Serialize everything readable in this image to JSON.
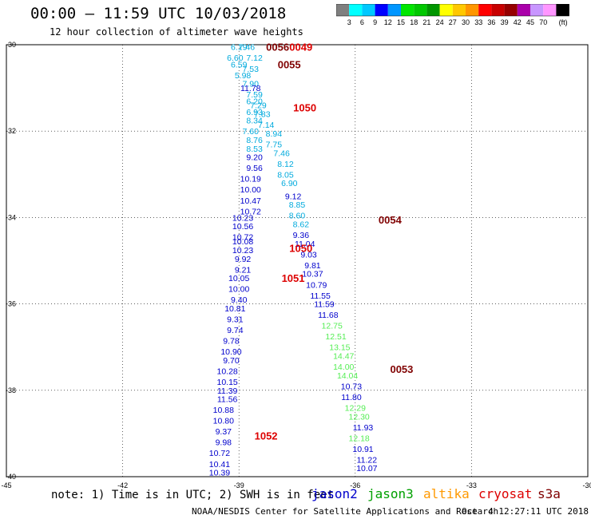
{
  "header": {
    "title": "00:00 – 11:59 UTC 10/03/2018",
    "subtitle": "12 hour collection of altimeter wave heights"
  },
  "legend": {
    "unit": "(ft)",
    "colors": [
      "#7f7f7f",
      "#00ffff",
      "#00c8ff",
      "#0000ff",
      "#0096ff",
      "#00e600",
      "#00c800",
      "#009600",
      "#ffff00",
      "#ffc800",
      "#ff9600",
      "#ff0000",
      "#c80000",
      "#960000",
      "#aa00aa",
      "#c896ff",
      "#ff96ff",
      "#000000"
    ],
    "labels": [
      "3",
      "6",
      "9",
      "12",
      "15",
      "18",
      "21",
      "24",
      "27",
      "30",
      "33",
      "36",
      "39",
      "42",
      "45",
      "70"
    ]
  },
  "axes": {
    "x_ticks": [
      "-45",
      "-42",
      "-39",
      "-36",
      "-33",
      "-30"
    ],
    "y_ticks": [
      "-30",
      "-32",
      "-34",
      "-36",
      "-38",
      "-40"
    ]
  },
  "footer": {
    "note": "note: 1) Time is in UTC; 2) SWH is in feet",
    "satellites": [
      {
        "name": "jason2",
        "color": "#0000cc"
      },
      {
        "name": "jason3",
        "color": "#00a000"
      },
      {
        "name": "altika",
        "color": "#ff9900"
      },
      {
        "name": "cryosat",
        "color": "#dd0000"
      },
      {
        "name": "s3a",
        "color": "#800000"
      }
    ],
    "credit": "NOAA/NESDIS Center for Satellite Applications and Research",
    "timestamp": "Oct  4 12:27:11 UTC 2018"
  },
  "chart_data": {
    "type": "scatter",
    "xlim": [
      -45,
      -30
    ],
    "ylim": [
      -40,
      -30
    ],
    "grid": true,
    "points": [
      {
        "lon": -39.0,
        "lat": -30.05,
        "v": "6.19",
        "c": "#00aadd"
      },
      {
        "lon": -39.1,
        "lat": -30.3,
        "v": "6.60",
        "c": "#00aadd"
      },
      {
        "lon": -39.0,
        "lat": -30.45,
        "v": "6.59",
        "c": "#00aadd"
      },
      {
        "lon": -38.9,
        "lat": -30.7,
        "v": "5.98",
        "c": "#00aadd"
      },
      {
        "lon": -38.7,
        "lat": -30.9,
        "v": "7.90",
        "c": "#00aadd"
      },
      {
        "lon": -38.7,
        "lat": -31.0,
        "v": "11.78",
        "c": "#0000cc"
      },
      {
        "lon": -38.6,
        "lat": -31.15,
        "v": "7.59",
        "c": "#00aadd"
      },
      {
        "lon": -38.6,
        "lat": -31.3,
        "v": "6.20",
        "c": "#00aadd"
      },
      {
        "lon": -38.5,
        "lat": -31.4,
        "v": "7.29",
        "c": "#00aadd"
      },
      {
        "lon": -38.6,
        "lat": -31.55,
        "v": "6.93",
        "c": "#00aadd"
      },
      {
        "lon": -38.4,
        "lat": -31.6,
        "v": "7.83",
        "c": "#00aadd"
      },
      {
        "lon": -38.6,
        "lat": -31.75,
        "v": "8.34",
        "c": "#00aadd"
      },
      {
        "lon": -38.3,
        "lat": -31.85,
        "v": "7.14",
        "c": "#00aadd"
      },
      {
        "lon": -38.7,
        "lat": -32.0,
        "v": "7.60",
        "c": "#00aadd"
      },
      {
        "lon": -38.1,
        "lat": -32.05,
        "v": "8.94",
        "c": "#00aadd"
      },
      {
        "lon": -38.6,
        "lat": -32.2,
        "v": "8.76",
        "c": "#00aadd"
      },
      {
        "lon": -38.1,
        "lat": -32.3,
        "v": "7.75",
        "c": "#00aadd"
      },
      {
        "lon": -38.6,
        "lat": -32.4,
        "v": "8.53",
        "c": "#00aadd"
      },
      {
        "lon": -37.9,
        "lat": -32.5,
        "v": "7.46",
        "c": "#00aadd"
      },
      {
        "lon": -38.6,
        "lat": -32.6,
        "v": "9.20",
        "c": "#0000cc"
      },
      {
        "lon": -37.8,
        "lat": -32.75,
        "v": "8.12",
        "c": "#00aadd"
      },
      {
        "lon": -38.6,
        "lat": -32.85,
        "v": "9.56",
        "c": "#0000cc"
      },
      {
        "lon": -37.8,
        "lat": -33.0,
        "v": "8.05",
        "c": "#00aadd"
      },
      {
        "lon": -38.7,
        "lat": -33.1,
        "v": "10.19",
        "c": "#0000cc"
      },
      {
        "lon": -37.7,
        "lat": -33.2,
        "v": "6.90",
        "c": "#00aadd"
      },
      {
        "lon": -38.7,
        "lat": -33.35,
        "v": "10.00",
        "c": "#0000cc"
      },
      {
        "lon": -37.6,
        "lat": -33.5,
        "v": "9.12",
        "c": "#0000cc"
      },
      {
        "lon": -38.7,
        "lat": -33.6,
        "v": "10.47",
        "c": "#0000cc"
      },
      {
        "lon": -37.5,
        "lat": -33.7,
        "v": "8.85",
        "c": "#00aadd"
      },
      {
        "lon": -38.7,
        "lat": -33.85,
        "v": "10.72",
        "c": "#0000cc"
      },
      {
        "lon": -37.5,
        "lat": -33.95,
        "v": "8.60",
        "c": "#00aadd"
      },
      {
        "lon": -38.9,
        "lat": -34.0,
        "v": "10.23",
        "c": "#0000cc"
      },
      {
        "lon": -37.4,
        "lat": -34.15,
        "v": "8.62",
        "c": "#00aadd"
      },
      {
        "lon": -38.9,
        "lat": -34.2,
        "v": "10.56",
        "c": "#0000cc"
      },
      {
        "lon": -37.4,
        "lat": -34.4,
        "v": "9.36",
        "c": "#0000cc"
      },
      {
        "lon": -38.9,
        "lat": -34.45,
        "v": "10.72",
        "c": "#0000cc"
      },
      {
        "lon": -38.9,
        "lat": -34.55,
        "v": "10.08",
        "c": "#0000cc"
      },
      {
        "lon": -37.3,
        "lat": -34.6,
        "v": "11.04",
        "c": "#0000cc"
      },
      {
        "lon": -38.9,
        "lat": -34.75,
        "v": "10.23",
        "c": "#0000cc"
      },
      {
        "lon": -37.2,
        "lat": -34.85,
        "v": "9.03",
        "c": "#0000cc"
      },
      {
        "lon": -38.9,
        "lat": -34.95,
        "v": "9.92",
        "c": "#0000cc"
      },
      {
        "lon": -37.1,
        "lat": -35.1,
        "v": "9.81",
        "c": "#0000cc"
      },
      {
        "lon": -38.9,
        "lat": -35.2,
        "v": "9.21",
        "c": "#0000cc"
      },
      {
        "lon": -37.1,
        "lat": -35.3,
        "v": "10.37",
        "c": "#0000cc"
      },
      {
        "lon": -39.0,
        "lat": -35.4,
        "v": "10.05",
        "c": "#0000cc"
      },
      {
        "lon": -37.0,
        "lat": -35.55,
        "v": "10.79",
        "c": "#0000cc"
      },
      {
        "lon": -39.0,
        "lat": -35.65,
        "v": "10.00",
        "c": "#0000cc"
      },
      {
        "lon": -36.9,
        "lat": -35.8,
        "v": "11.55",
        "c": "#0000cc"
      },
      {
        "lon": -39.0,
        "lat": -35.9,
        "v": "9.40",
        "c": "#0000cc"
      },
      {
        "lon": -36.8,
        "lat": -36.0,
        "v": "11.59",
        "c": "#0000cc"
      },
      {
        "lon": -39.1,
        "lat": -36.1,
        "v": "10.81",
        "c": "#0000cc"
      },
      {
        "lon": -36.7,
        "lat": -36.25,
        "v": "11.68",
        "c": "#0000cc"
      },
      {
        "lon": -39.1,
        "lat": -36.35,
        "v": "9.31",
        "c": "#0000cc"
      },
      {
        "lon": -36.6,
        "lat": -36.5,
        "v": "12.75",
        "c": "#55ee55"
      },
      {
        "lon": -39.1,
        "lat": -36.6,
        "v": "9.74",
        "c": "#0000cc"
      },
      {
        "lon": -36.5,
        "lat": -36.75,
        "v": "12.51",
        "c": "#55ee55"
      },
      {
        "lon": -39.2,
        "lat": -36.85,
        "v": "9.78",
        "c": "#0000cc"
      },
      {
        "lon": -36.4,
        "lat": -37.0,
        "v": "13.15",
        "c": "#55ee55"
      },
      {
        "lon": -39.2,
        "lat": -37.1,
        "v": "10.90",
        "c": "#0000cc"
      },
      {
        "lon": -36.3,
        "lat": -37.2,
        "v": "14.47",
        "c": "#55ee55"
      },
      {
        "lon": -39.2,
        "lat": -37.3,
        "v": "9.70",
        "c": "#0000cc"
      },
      {
        "lon": -36.3,
        "lat": -37.45,
        "v": "14.00",
        "c": "#55ee55"
      },
      {
        "lon": -39.3,
        "lat": -37.55,
        "v": "10.28",
        "c": "#0000cc"
      },
      {
        "lon": -36.2,
        "lat": -37.65,
        "v": "14.04",
        "c": "#55ee55"
      },
      {
        "lon": -39.3,
        "lat": -37.8,
        "v": "10.15",
        "c": "#0000cc"
      },
      {
        "lon": -36.1,
        "lat": -37.9,
        "v": "10.73",
        "c": "#0000cc"
      },
      {
        "lon": -39.3,
        "lat": -38.0,
        "v": "11.39",
        "c": "#0000cc"
      },
      {
        "lon": -36.1,
        "lat": -38.15,
        "v": "11.80",
        "c": "#0000cc"
      },
      {
        "lon": -39.3,
        "lat": -38.2,
        "v": "11.56",
        "c": "#0000cc"
      },
      {
        "lon": -36.0,
        "lat": -38.4,
        "v": "12.29",
        "c": "#55ee55"
      },
      {
        "lon": -39.4,
        "lat": -38.45,
        "v": "10.88",
        "c": "#0000cc"
      },
      {
        "lon": -35.9,
        "lat": -38.6,
        "v": "12.30",
        "c": "#55ee55"
      },
      {
        "lon": -39.4,
        "lat": -38.7,
        "v": "10.80",
        "c": "#0000cc"
      },
      {
        "lon": -35.8,
        "lat": -38.85,
        "v": "11.93",
        "c": "#0000cc"
      },
      {
        "lon": -39.4,
        "lat": -38.95,
        "v": "9.37",
        "c": "#0000cc"
      },
      {
        "lon": -35.9,
        "lat": -39.1,
        "v": "12.18",
        "c": "#55ee55"
      },
      {
        "lon": -39.4,
        "lat": -39.2,
        "v": "9.98",
        "c": "#0000cc"
      },
      {
        "lon": -35.8,
        "lat": -39.35,
        "v": "10.91",
        "c": "#0000cc"
      },
      {
        "lon": -39.5,
        "lat": -39.45,
        "v": "10.72",
        "c": "#0000cc"
      },
      {
        "lon": -35.7,
        "lat": -39.6,
        "v": "11.22",
        "c": "#0000cc"
      },
      {
        "lon": -39.5,
        "lat": -39.7,
        "v": "10.41",
        "c": "#0000cc"
      },
      {
        "lon": -35.7,
        "lat": -39.8,
        "v": "10.07",
        "c": "#0000cc"
      },
      {
        "lon": -39.5,
        "lat": -39.9,
        "v": "10.39",
        "c": "#0000cc"
      },
      {
        "lon": -38.8,
        "lat": -30.05,
        "v": "7.46",
        "c": "#00aadd"
      },
      {
        "lon": -38.6,
        "lat": -30.3,
        "v": "7.12",
        "c": "#00aadd"
      },
      {
        "lon": -38.7,
        "lat": -30.55,
        "v": "7.53",
        "c": "#00aadd"
      }
    ],
    "time_labels": [
      {
        "lon": -38.3,
        "lat": -30.05,
        "t": "0056",
        "c": "#800000"
      },
      {
        "lon": -37.7,
        "lat": -30.05,
        "t": "0049",
        "c": "#dd0000"
      },
      {
        "lon": -38.0,
        "lat": -30.45,
        "t": "0055",
        "c": "#800000"
      },
      {
        "lon": -37.6,
        "lat": -31.45,
        "t": "1050",
        "c": "#dd0000"
      },
      {
        "lon": -35.4,
        "lat": -34.05,
        "t": "0054",
        "c": "#800000"
      },
      {
        "lon": -37.7,
        "lat": -34.7,
        "t": "1050",
        "c": "#dd0000"
      },
      {
        "lon": -37.9,
        "lat": -35.4,
        "t": "1051",
        "c": "#dd0000"
      },
      {
        "lon": -35.1,
        "lat": -37.5,
        "t": "0053",
        "c": "#800000"
      },
      {
        "lon": -38.6,
        "lat": -39.05,
        "t": "1052",
        "c": "#dd0000"
      }
    ]
  }
}
